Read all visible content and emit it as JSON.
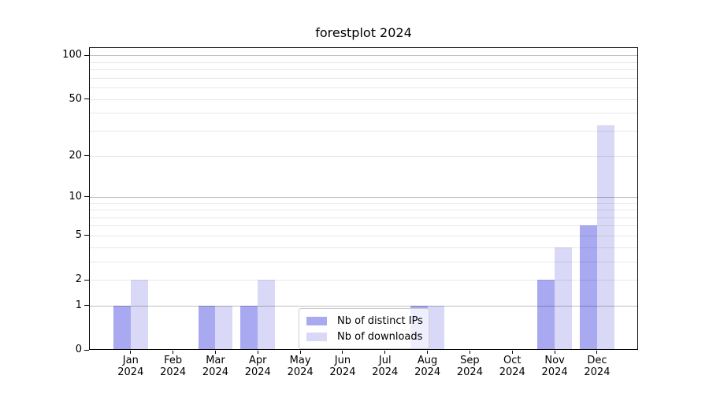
{
  "title": "forestplot 2024",
  "chart_data": {
    "type": "bar",
    "title": "forestplot 2024",
    "categories": [
      "Jan",
      "Feb",
      "Mar",
      "Apr",
      "May",
      "Jun",
      "Jul",
      "Aug",
      "Sep",
      "Oct",
      "Nov",
      "Dec"
    ],
    "year": "2024",
    "series": [
      {
        "name": "Nb of distinct IPs",
        "color": "#a9a9f2",
        "values": [
          1,
          0,
          1,
          1,
          0,
          0,
          0,
          1,
          0,
          0,
          2,
          6
        ]
      },
      {
        "name": "Nb of downloads",
        "color": "#d9d9f7",
        "values": [
          2,
          0,
          1,
          2,
          0,
          0,
          0,
          1,
          0,
          0,
          4,
          33
        ]
      }
    ],
    "y_scale": "log1p",
    "y_ticks": [
      0,
      1,
      2,
      5,
      10,
      20,
      50,
      100
    ],
    "y_major_gridlines": [
      1,
      10,
      100
    ],
    "y_minor_gridlines": [
      2,
      3,
      4,
      5,
      6,
      7,
      8,
      9,
      20,
      30,
      40,
      50,
      60,
      70,
      80,
      90
    ],
    "ylim": [
      0,
      114
    ],
    "xlabel": "",
    "ylabel": "",
    "legend_position": "lower center",
    "grid": "both"
  },
  "colors": {
    "bar_distinct_ips": "#a9a9f2",
    "bar_downloads": "#d9d9f7",
    "major_grid": "rgba(0,0,0,0.25)",
    "minor_grid": "rgba(0,0,0,0.09)",
    "spine": "#000000",
    "legend_border": "#cbcbcb",
    "legend_bg": "rgba(255,255,255,0.8)",
    "text": "#000000",
    "background": "#ffffff"
  }
}
